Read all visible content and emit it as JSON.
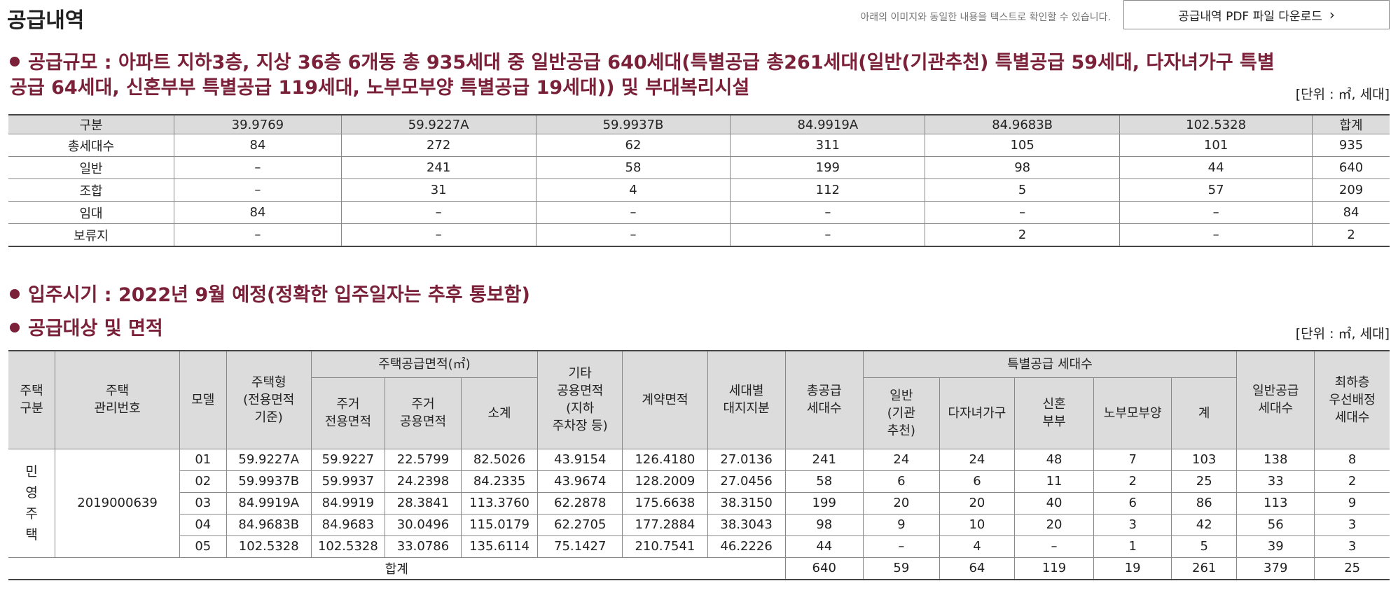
{
  "header": {
    "title": "공급내역",
    "notice": "아래의 이미지와 동일한 내용을 텍스트로 확인할 수 있습니다.",
    "pdf_button": "공급내역 PDF 파일 다운로드",
    "pdf_button_icon": "chevron-right-icon"
  },
  "colors": {
    "accent": "#7a2038",
    "header_bg": "#dcdcdc"
  },
  "section1": {
    "title_line1": "공급규모 : 아파트 지하3층, 지상 36층 6개동 총 935세대 중 일반공급 640세대(특별공급 총261세대(일반(기관추천) 특별공급 59세대, 다자녀가구 특별",
    "title_line2": "공급 64세대, 신혼부부 특별공급 119세대, 노부모부양 특별공급 19세대)) 및 부대복리시설",
    "unit": "[단위 : ㎡, 세대]"
  },
  "table1": {
    "headers": [
      "구분",
      "39.9769",
      "59.9227A",
      "59.9937B",
      "84.9919A",
      "84.9683B",
      "102.5328",
      "합계"
    ],
    "rows": [
      [
        "총세대수",
        "84",
        "272",
        "62",
        "311",
        "105",
        "101",
        "935"
      ],
      [
        "일반",
        "–",
        "241",
        "58",
        "199",
        "98",
        "44",
        "640"
      ],
      [
        "조합",
        "–",
        "31",
        "4",
        "112",
        "5",
        "57",
        "209"
      ],
      [
        "임대",
        "84",
        "–",
        "–",
        "–",
        "–",
        "–",
        "84"
      ],
      [
        "보류지",
        "–",
        "–",
        "–",
        "–",
        "2",
        "–",
        "2"
      ]
    ]
  },
  "section2": {
    "title": "입주시기 : 2022년 9월 예정(정확한 입주일자는 추후 통보함)"
  },
  "section3": {
    "title": "공급대상 및 면적",
    "unit": "[단위 : ㎡, 세대]"
  },
  "table2": {
    "h_type": "주택\n구분",
    "h_mgmt": "주택\n관리번호",
    "h_model": "모델",
    "h_housetype": "주택형\n(전용면적\n기준)",
    "h_area": "주택공급면적(㎡)",
    "h_res_excl": "주거\n전용면적",
    "h_res_common": "주거\n공용면적",
    "h_subtotal": "소계",
    "h_other": "기타\n공용면적\n(지하\n주차장 등)",
    "h_contract": "계약면적",
    "h_land": "세대별\n대지지분",
    "h_total_supply": "총공급\n세대수",
    "h_special": "특별공급 세대수",
    "h_sp_general": "일반\n(기관\n추천)",
    "h_sp_multi": "다자녀가구",
    "h_sp_newlywed": "신혼\n부부",
    "h_sp_elder": "노부모부양",
    "h_sp_sum": "계",
    "h_general_supply": "일반공급\n세대수",
    "h_lowest": "최하층\n우선배정\n세대수",
    "house_type": "민\n영\n주\n택",
    "mgmt_no": "2019000639",
    "rows": [
      [
        "01",
        "59.9227A",
        "59.9227",
        "22.5799",
        "82.5026",
        "43.9154",
        "126.4180",
        "27.0136",
        "241",
        "24",
        "24",
        "48",
        "7",
        "103",
        "138",
        "8"
      ],
      [
        "02",
        "59.9937B",
        "59.9937",
        "24.2398",
        "84.2335",
        "43.9674",
        "128.2009",
        "27.0456",
        "58",
        "6",
        "6",
        "11",
        "2",
        "25",
        "33",
        "2"
      ],
      [
        "03",
        "84.9919A",
        "84.9919",
        "28.3841",
        "113.3760",
        "62.2878",
        "175.6638",
        "38.3150",
        "199",
        "20",
        "20",
        "40",
        "6",
        "86",
        "113",
        "9"
      ],
      [
        "04",
        "84.9683B",
        "84.9683",
        "30.0496",
        "115.0179",
        "62.2705",
        "177.2884",
        "38.3043",
        "98",
        "9",
        "10",
        "20",
        "3",
        "42",
        "56",
        "3"
      ],
      [
        "05",
        "102.5328",
        "102.5328",
        "33.0786",
        "135.6114",
        "75.1427",
        "210.7541",
        "46.2226",
        "44",
        "–",
        "4",
        "–",
        "1",
        "5",
        "39",
        "3"
      ]
    ],
    "total_label": "합계",
    "total": [
      "640",
      "59",
      "64",
      "119",
      "19",
      "261",
      "379",
      "25"
    ]
  }
}
